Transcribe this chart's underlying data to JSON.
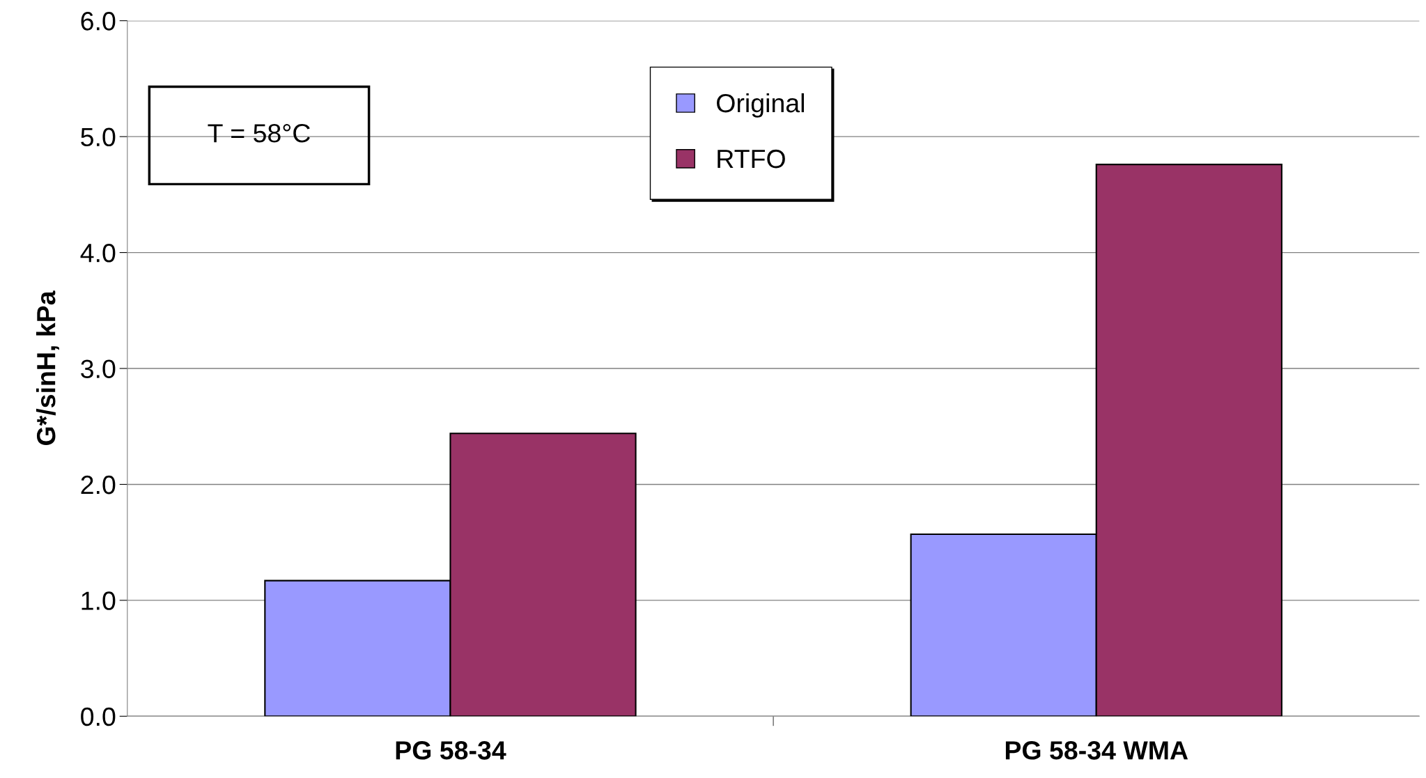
{
  "chart_data": {
    "type": "bar",
    "ylabel": "G*/sinH, kPa",
    "categories": [
      "PG 58-34",
      "PG 58-34 WMA"
    ],
    "series": [
      {
        "name": "Original",
        "color": "#9999ff",
        "values": [
          1.17,
          1.57
        ]
      },
      {
        "name": "RTFO",
        "color": "#993366",
        "values": [
          2.44,
          4.76
        ]
      }
    ],
    "ylim": [
      0,
      6
    ],
    "yticks": [
      {
        "value": 0,
        "label": "0.0"
      },
      {
        "value": 1,
        "label": "1.0"
      },
      {
        "value": 2,
        "label": "2.0"
      },
      {
        "value": 3,
        "label": "3.0"
      },
      {
        "value": 4,
        "label": "4.0"
      },
      {
        "value": 5,
        "label": "5.0"
      },
      {
        "value": 6,
        "label": "6.0"
      }
    ],
    "grid": "y",
    "legend": "top",
    "annotations": [
      "T = 58°C"
    ]
  }
}
